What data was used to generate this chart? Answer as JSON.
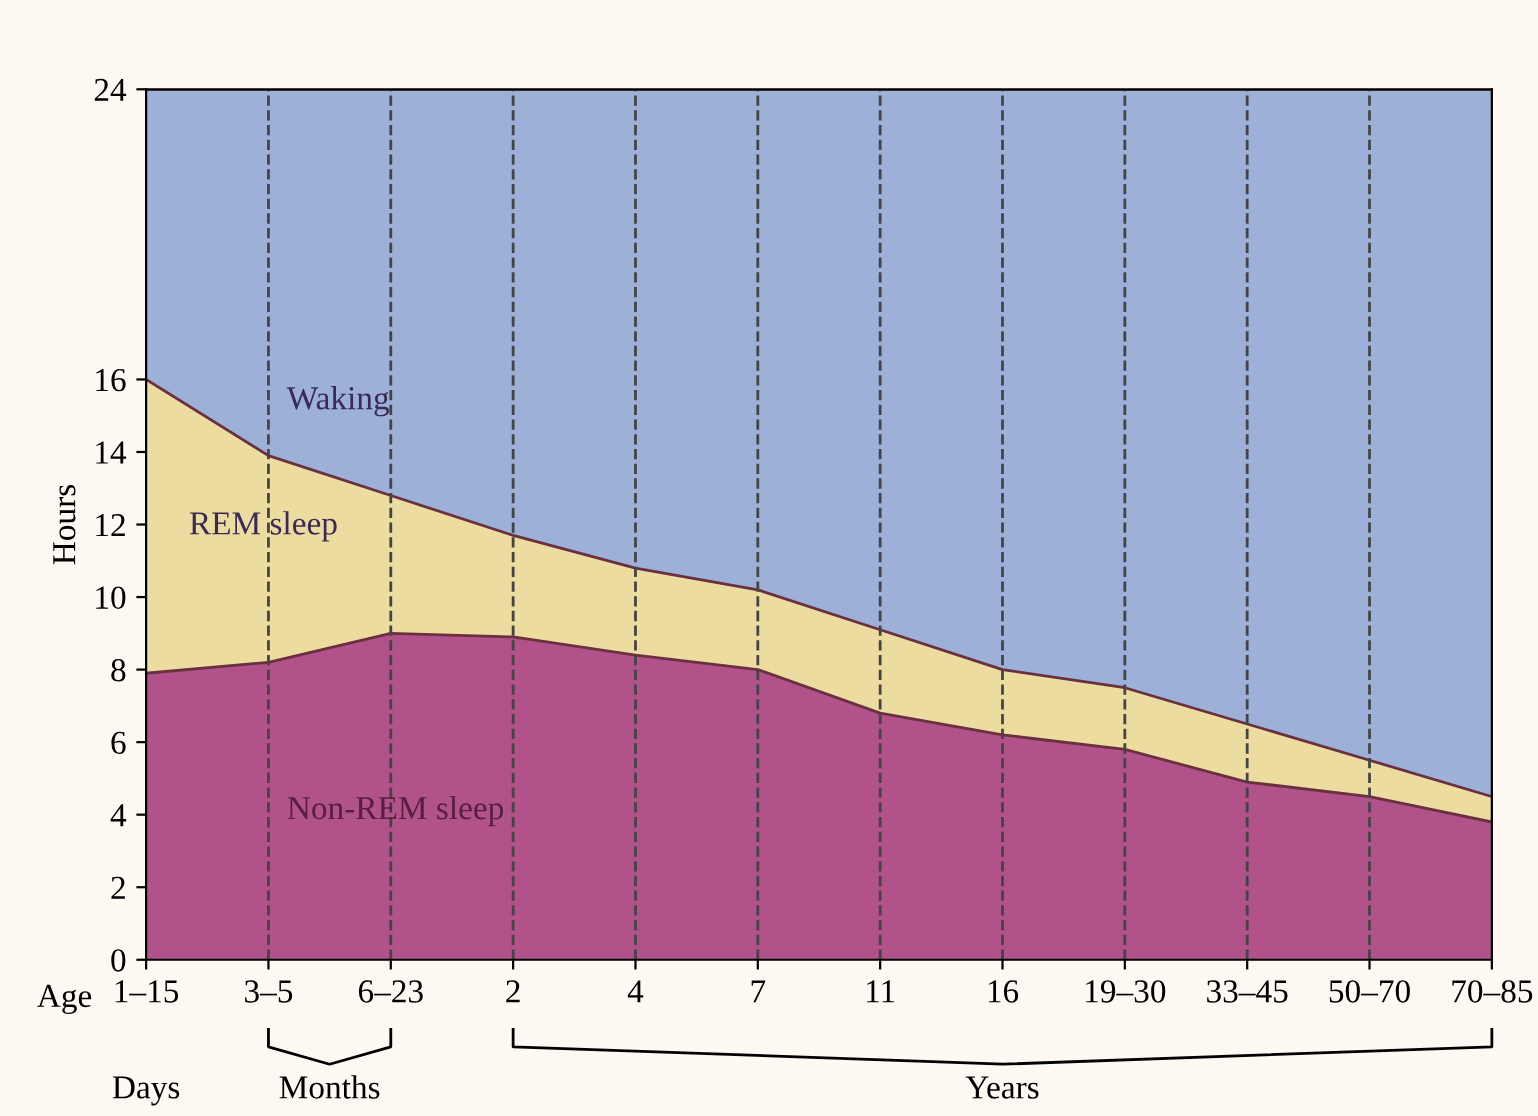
{
  "chart_data": {
    "type": "area",
    "stacked": true,
    "ylabel": "Hours",
    "categories": [
      "1–15",
      "3–5",
      "6–23",
      "2",
      "4",
      "7",
      "11",
      "16",
      "19–30",
      "33–45",
      "50–70",
      "70–85"
    ],
    "series": [
      {
        "name": "Non-REM sleep",
        "color": "#b1528a",
        "values": [
          7.9,
          8.2,
          9.0,
          8.9,
          8.4,
          8.0,
          6.8,
          6.2,
          5.8,
          4.9,
          4.5,
          3.8
        ]
      },
      {
        "name": "REM sleep",
        "color": "#ecdca0",
        "values": [
          8.1,
          5.7,
          3.8,
          2.8,
          2.4,
          2.2,
          2.3,
          1.8,
          1.7,
          1.6,
          1.0,
          0.7
        ]
      },
      {
        "name": "Waking",
        "color": "#9cb0d8",
        "values": [
          8.0,
          10.1,
          11.2,
          12.3,
          13.2,
          13.8,
          14.9,
          16.0,
          16.5,
          17.5,
          18.5,
          19.5
        ]
      }
    ],
    "ylim": [
      0,
      24
    ],
    "yticks": [
      0,
      2,
      4,
      6,
      8,
      10,
      12,
      14,
      16,
      24
    ],
    "grid": "x",
    "line_style": "dashed",
    "annotations": [
      "Age",
      "Days",
      "Months",
      "Years"
    ]
  }
}
